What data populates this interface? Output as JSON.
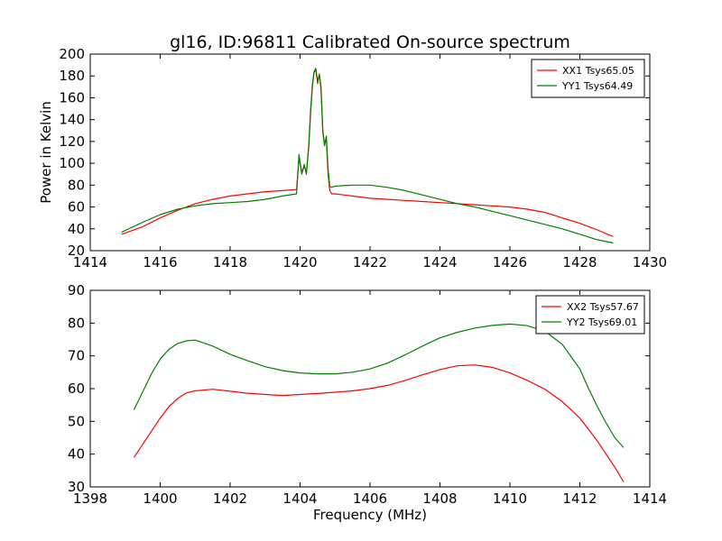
{
  "figure_title": "gl16, ID:96811 Calibrated On-source spectrum",
  "chart_data": [
    {
      "type": "line",
      "title": "gl16, ID:96811 Calibrated On-source spectrum",
      "xlabel": "",
      "ylabel": "Power in Kelvin",
      "xlim": [
        1414,
        1430
      ],
      "ylim": [
        20,
        200
      ],
      "xticks": [
        1414,
        1416,
        1418,
        1420,
        1422,
        1424,
        1426,
        1428,
        1430
      ],
      "yticks": [
        20,
        40,
        60,
        80,
        100,
        120,
        140,
        160,
        180,
        200
      ],
      "grid": false,
      "legend_position": "top-right",
      "series": [
        {
          "name": "XX1 Tsys65.05",
          "color": "#ff0000",
          "x": [
            1414.9,
            1415.5,
            1416.0,
            1416.5,
            1417.0,
            1417.5,
            1418.0,
            1418.5,
            1419.0,
            1419.5,
            1419.9,
            1419.97,
            1420.05,
            1420.12,
            1420.18,
            1420.25,
            1420.3,
            1420.35,
            1420.4,
            1420.45,
            1420.5,
            1420.55,
            1420.6,
            1420.65,
            1420.7,
            1420.75,
            1420.8,
            1420.85,
            1420.9,
            1421.0,
            1421.5,
            1422.0,
            1422.5,
            1423.0,
            1423.5,
            1424.0,
            1424.5,
            1425.0,
            1425.5,
            1426.0,
            1426.5,
            1427.0,
            1427.5,
            1428.0,
            1428.5,
            1428.95
          ],
          "y": [
            35,
            42,
            50,
            57,
            63,
            67,
            70,
            72,
            74,
            75,
            76,
            105,
            92,
            97,
            92,
            115,
            145,
            170,
            183,
            186,
            173,
            182,
            170,
            130,
            118,
            122,
            90,
            75,
            72,
            72,
            70,
            68,
            67,
            66,
            65,
            64,
            63,
            62,
            61,
            60,
            58,
            55,
            50,
            45,
            39,
            33
          ]
        },
        {
          "name": "YY1 Tsys64.49",
          "color": "#008000",
          "x": [
            1414.9,
            1415.5,
            1416.0,
            1416.5,
            1417.0,
            1417.5,
            1418.0,
            1418.5,
            1419.0,
            1419.5,
            1419.9,
            1419.97,
            1420.05,
            1420.12,
            1420.18,
            1420.25,
            1420.3,
            1420.35,
            1420.4,
            1420.45,
            1420.5,
            1420.55,
            1420.6,
            1420.65,
            1420.7,
            1420.75,
            1420.8,
            1420.85,
            1420.9,
            1421.0,
            1421.5,
            1422.0,
            1422.5,
            1423.0,
            1423.5,
            1424.0,
            1424.5,
            1425.0,
            1425.5,
            1426.0,
            1426.5,
            1427.0,
            1427.5,
            1428.0,
            1428.5,
            1428.95
          ],
          "y": [
            37,
            46,
            53,
            58,
            61,
            63,
            64,
            65,
            67,
            70,
            72,
            108,
            90,
            99,
            90,
            118,
            148,
            172,
            184,
            187,
            175,
            181,
            168,
            128,
            116,
            125,
            95,
            79,
            78,
            79,
            80,
            80,
            78,
            75,
            71,
            67,
            63,
            60,
            56,
            52,
            48,
            44,
            40,
            35,
            30,
            27
          ]
        }
      ]
    },
    {
      "type": "line",
      "title": "",
      "xlabel": "Frequency (MHz)",
      "ylabel": "",
      "xlim": [
        1398,
        1414
      ],
      "ylim": [
        30,
        90
      ],
      "xticks": [
        1398,
        1400,
        1402,
        1404,
        1406,
        1408,
        1410,
        1412,
        1414
      ],
      "yticks": [
        30,
        40,
        50,
        60,
        70,
        80,
        90
      ],
      "grid": false,
      "legend_position": "top-right",
      "series": [
        {
          "name": "XX2 Tsys57.67",
          "color": "#ff0000",
          "x": [
            1399.25,
            1399.5,
            1399.75,
            1400.0,
            1400.25,
            1400.5,
            1400.75,
            1401.0,
            1401.5,
            1402.0,
            1402.5,
            1403.0,
            1403.5,
            1404.0,
            1404.5,
            1405.0,
            1405.5,
            1406.0,
            1406.5,
            1407.0,
            1407.5,
            1408.0,
            1408.5,
            1409.0,
            1409.5,
            1410.0,
            1410.5,
            1411.0,
            1411.5,
            1412.0,
            1412.25,
            1412.5,
            1412.75,
            1413.0,
            1413.25
          ],
          "y": [
            39,
            43,
            47,
            51,
            54.5,
            57,
            58.7,
            59.3,
            59.8,
            59.2,
            58.6,
            58.2,
            57.9,
            58.2,
            58.5,
            58.9,
            59.3,
            60,
            61,
            62.5,
            64.2,
            65.8,
            67,
            67.2,
            66.5,
            64.8,
            62.5,
            59.8,
            56,
            51,
            47.5,
            44,
            40,
            36,
            31.5
          ]
        },
        {
          "name": "YY2 Tsys69.01",
          "color": "#008000",
          "x": [
            1399.25,
            1399.5,
            1399.75,
            1400.0,
            1400.25,
            1400.5,
            1400.75,
            1401.0,
            1401.5,
            1402.0,
            1402.5,
            1403.0,
            1403.5,
            1404.0,
            1404.5,
            1405.0,
            1405.5,
            1406.0,
            1406.5,
            1407.0,
            1407.5,
            1408.0,
            1408.5,
            1409.0,
            1409.5,
            1410.0,
            1410.5,
            1411.0,
            1411.5,
            1412.0,
            1412.25,
            1412.5,
            1412.75,
            1413.0,
            1413.25
          ],
          "y": [
            53.5,
            59,
            64.5,
            69,
            72,
            73.8,
            74.6,
            74.8,
            73,
            70.5,
            68.5,
            66.7,
            65.5,
            64.8,
            64.5,
            64.5,
            65,
            66,
            67.8,
            70.3,
            73,
            75.5,
            77.2,
            78.5,
            79.3,
            79.7,
            79.2,
            77.5,
            73.5,
            66,
            60,
            54.5,
            49.5,
            45,
            42
          ]
        }
      ]
    }
  ]
}
